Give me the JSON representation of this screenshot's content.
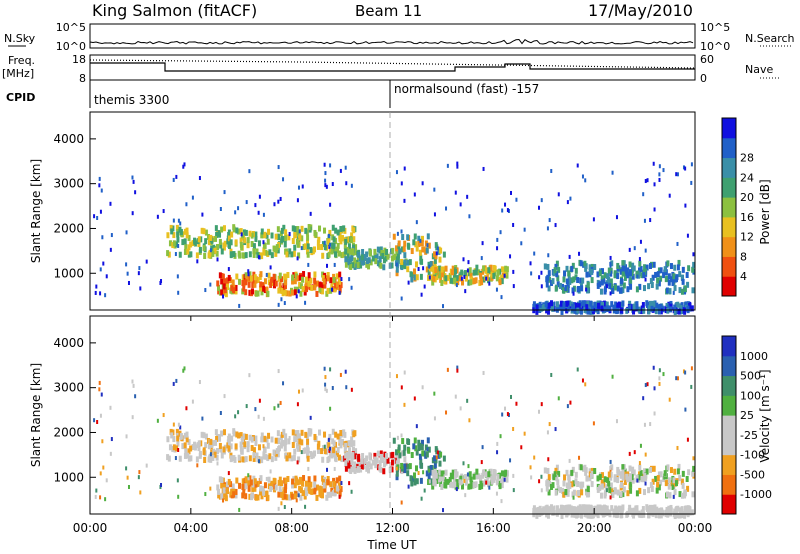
{
  "header": {
    "station": "King Salmon (fitACF)",
    "beam": "Beam 11",
    "date": "17/May/2010"
  },
  "top_panels": {
    "nsky_label": "N.Sky",
    "nsky_ticks": [
      "10^5",
      "10^0"
    ],
    "nsearch_label": "N.Search",
    "nsearch_ticks": [
      "10^5",
      "10^0"
    ],
    "freq_label_1": "Freq.",
    "freq_label_2": "[MHz]",
    "freq_ticks": [
      "18",
      "8"
    ],
    "nave_label": "Nave",
    "nave_ticks": [
      "60",
      "0"
    ],
    "cpid_label": "CPID",
    "cpid_segments": [
      "themis 3300",
      "normalsound (fast) -157"
    ]
  },
  "chart_data": [
    {
      "type": "heatmap",
      "name": "power",
      "ylabel": "Slant Range [km]",
      "ylim": [
        180,
        4600
      ],
      "yticks": [
        "1000",
        "2000",
        "3000",
        "4000"
      ],
      "colorbar_label": "Power [dB]",
      "colorbar_ticks": [
        "4",
        "8",
        "12",
        "16",
        "20",
        "24",
        "28"
      ],
      "colorbar_colors": [
        "#1010e0",
        "#2060c8",
        "#3a8fa8",
        "#3fa070",
        "#8cc040",
        "#e8c020",
        "#f09018",
        "#f05010",
        "#e00000"
      ]
    },
    {
      "type": "heatmap",
      "name": "velocity",
      "ylabel": "Slant Range [km]",
      "ylim": [
        180,
        4600
      ],
      "yticks": [
        "1000",
        "2000",
        "3000",
        "4000"
      ],
      "colorbar_label": "Velocity [m s⁻¹]",
      "colorbar_ticks": [
        "1000",
        "500",
        "100",
        "25",
        "-25",
        "-100",
        "-500",
        "-1000"
      ],
      "colorbar_colors": [
        "#2030c0",
        "#2a60b0",
        "#3f8f6a",
        "#50b040",
        "#c8c8c8",
        "#c8c8c8",
        "#f0a020",
        "#f07010",
        "#e00000"
      ]
    }
  ],
  "xaxis": {
    "label": "Time UT",
    "ticks": [
      "00:00",
      "04:00",
      "08:00",
      "12:00",
      "16:00",
      "20:00",
      "00:00"
    ]
  }
}
